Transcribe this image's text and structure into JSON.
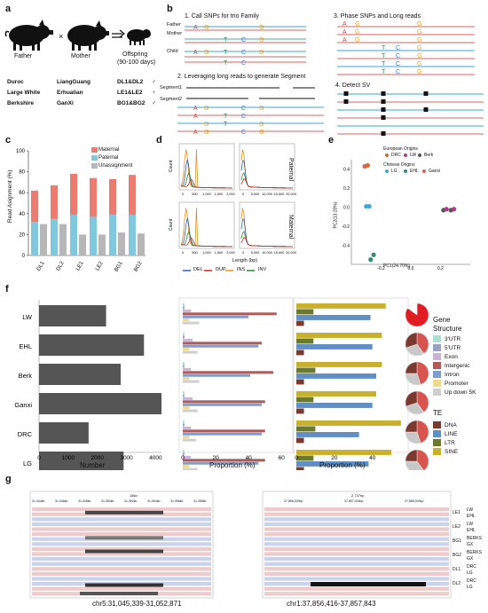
{
  "panel_a": {
    "label": "a",
    "father": "Father",
    "mother": "Mother",
    "offspring_line1": "Offspring",
    "offspring_line2": "(90-100 days)",
    "rows": [
      {
        "father": "Duroc",
        "mother": "LiangGuang",
        "offspring": "DL1&DL2",
        "sex": "♂"
      },
      {
        "father": "Large White",
        "mother": "Erhualian",
        "offspring": "LE1&LE2",
        "sex": "♀"
      },
      {
        "father": "Berkshire",
        "mother": "GanXi",
        "offspring": "BG1&BG2",
        "sex": "♂"
      }
    ]
  },
  "panel_b": {
    "label": "b",
    "step1": "1. Call SNPs for trio Family",
    "step2": "2. Leveraging long reads to generate Segment",
    "step3": "3. Phase SNPs and Long reads",
    "step4": "4. Detect SV",
    "father": "Father",
    "mother": "Mother",
    "child": "Child",
    "segment1": "Segment1",
    "segment2": "Segment2",
    "bases": [
      "A",
      "G",
      "T",
      "C",
      "G"
    ]
  },
  "panel_c": {
    "label": "c",
    "colors": {
      "Maternal": "#ee7b6f",
      "Paternal": "#7fc8dd",
      "Unassignment": "#b7b7b7"
    },
    "chart_data": {
      "type": "bar",
      "categories": [
        "DL1",
        "DL2",
        "LE1",
        "LE2",
        "BG1",
        "BG2"
      ],
      "series": [
        {
          "name": "Maternal",
          "values": [
            30,
            32,
            39,
            37,
            34,
            38
          ]
        },
        {
          "name": "Paternal",
          "values": [
            32,
            35,
            39,
            37,
            39,
            39
          ]
        },
        {
          "name": "Unassignment",
          "values": [
            30,
            30,
            20,
            20,
            22,
            21
          ]
        }
      ],
      "ylabel": "Read Asignment (%)",
      "ylim": [
        0,
        100
      ],
      "yticks": [
        0,
        20,
        40,
        60,
        80,
        100
      ],
      "legend": "top-right"
    }
  },
  "panel_d": {
    "label": "d",
    "paternal": "Paternal",
    "maternal": "Maternal",
    "ylabel": "Count",
    "xlabel": "Length (bp)",
    "left_ticks": [
      "0",
      "500",
      "1,000",
      "1,500",
      "2,000"
    ],
    "right_ticks": [
      "0",
      "5,000",
      "10,000",
      "15,000",
      "20,000"
    ],
    "legend": [
      {
        "name": "DEL",
        "color": "#2c5fa6"
      },
      {
        "name": "DUP",
        "color": "#d7261e"
      },
      {
        "name": "INS",
        "color": "#f08c1c"
      },
      {
        "name": "INV",
        "color": "#2e8b3a"
      }
    ]
  },
  "panel_e": {
    "label": "e",
    "european_title": "European Origins",
    "chinese_title": "Chinese Origins",
    "legend": [
      {
        "name": "DRC",
        "color": "#d46b2a"
      },
      {
        "name": "LW",
        "color": "#b5358a"
      },
      {
        "name": "Berk",
        "color": "#555555"
      },
      {
        "name": "LG",
        "color": "#3aa7d6"
      },
      {
        "name": "EHL",
        "color": "#2f8f7a"
      },
      {
        "name": "Ganxi",
        "color": "#e0605a"
      }
    ],
    "chart_data": {
      "type": "scatter",
      "xlabel": "PC1(24.70%)",
      "ylabel": "PC2(13.20%)",
      "xticks": [
        -0.2,
        0.0,
        0.2
      ],
      "yticks": [
        -0.4,
        -0.2,
        0.0,
        0.2,
        0.4
      ],
      "points": [
        {
          "group": "Ganxi",
          "x": -0.31,
          "y": 0.43
        },
        {
          "group": "DRC",
          "x": -0.29,
          "y": 0.44
        },
        {
          "group": "LG",
          "x": -0.3,
          "y": 0.01
        },
        {
          "group": "LG",
          "x": -0.28,
          "y": 0.01
        },
        {
          "group": "EHL",
          "x": -0.27,
          "y": -0.55
        },
        {
          "group": "EHL",
          "x": -0.25,
          "y": -0.5
        },
        {
          "group": "Berk",
          "x": 0.22,
          "y": -0.03
        },
        {
          "group": "LW",
          "x": 0.24,
          "y": -0.02
        },
        {
          "group": "Berk",
          "x": 0.27,
          "y": -0.03
        },
        {
          "group": "LW",
          "x": 0.29,
          "y": -0.02
        }
      ]
    },
    "axis_titles": {
      "x": "PC1(24.70%)",
      "y": "PC2(13.20%)"
    }
  },
  "panel_f": {
    "label": "f",
    "breeds": [
      "LW",
      "EHL",
      "Berk",
      "Ganxi",
      "DRC",
      "LG"
    ],
    "number_chart": {
      "type": "bar",
      "categories": [
        "LW",
        "EHL",
        "Berk",
        "Ganxi",
        "DRC",
        "LG"
      ],
      "values": [
        2300,
        3600,
        2800,
        4200,
        1700,
        2900
      ],
      "xlim": [
        0,
        4200
      ],
      "xticks": [
        0,
        1000,
        2000,
        3000,
        4000
      ],
      "xlabel": "Number"
    },
    "gene_chart": {
      "type": "bar",
      "categories": [
        "LW",
        "EHL",
        "Berk",
        "Ganxi",
        "DRC",
        "LG"
      ],
      "xticks": [
        0,
        20,
        40,
        60
      ],
      "xlim": [
        0,
        62
      ],
      "xlabel": "Proportion (%)",
      "series": [
        {
          "name": "3'UTR",
          "color": "#a9ded3",
          "values": [
            1,
            1,
            1,
            1,
            1,
            1
          ]
        },
        {
          "name": "5'UTR",
          "color": "#9aa0c4",
          "values": [
            1,
            1,
            1,
            1,
            1,
            1
          ]
        },
        {
          "name": "Exon",
          "color": "#c9b4d8",
          "values": [
            5,
            6,
            5,
            6,
            5,
            5
          ]
        },
        {
          "name": "Intergenic",
          "color": "#b15b58",
          "values": [
            57,
            48,
            55,
            50,
            50,
            50
          ]
        },
        {
          "name": "Intron",
          "color": "#7f9ed0",
          "values": [
            40,
            46,
            41,
            48,
            48,
            46
          ]
        },
        {
          "name": "Promoter",
          "color": "#f0d98e",
          "values": [
            4,
            4,
            4,
            4,
            4,
            4
          ]
        },
        {
          "name": "Up down 5K",
          "color": "#cfcfcf",
          "values": [
            10,
            9,
            10,
            9,
            8,
            9
          ]
        }
      ]
    },
    "te_chart": {
      "type": "bar",
      "categories": [
        "LW",
        "EHL",
        "Berk",
        "Ganxi",
        "DRC",
        "LG"
      ],
      "xticks": [
        0,
        20,
        40
      ],
      "xlim": [
        0,
        56
      ],
      "xlabel": "Proportion (%)",
      "series": [
        {
          "name": "DNA",
          "color": "#7a3b2e",
          "values": [
            4,
            4,
            4,
            4,
            4,
            4
          ]
        },
        {
          "name": "LINE",
          "color": "#5f8fc6",
          "values": [
            39,
            40,
            42,
            40,
            33,
            38
          ]
        },
        {
          "name": "LTR",
          "color": "#6b7a2a",
          "values": [
            9,
            9,
            10,
            9,
            10,
            9
          ]
        },
        {
          "name": "SINE",
          "color": "#c8b02a",
          "values": [
            47,
            45,
            45,
            42,
            55,
            50
          ]
        }
      ]
    },
    "pies": [
      [
        {
          "v": 85,
          "c": "#e21c23"
        },
        {
          "v": 15,
          "c": "#ffffff"
        }
      ],
      [
        {
          "v": 40,
          "c": "#d9534f"
        },
        {
          "v": 30,
          "c": "#c8c8c8"
        },
        {
          "v": 30,
          "c": "#7b3a2f"
        }
      ],
      [
        {
          "v": 45,
          "c": "#d9534f"
        },
        {
          "v": 30,
          "c": "#c8c8c8"
        },
        {
          "v": 25,
          "c": "#7b3a2f"
        }
      ],
      [
        {
          "v": 40,
          "c": "#d9534f"
        },
        {
          "v": 30,
          "c": "#c8c8c8"
        },
        {
          "v": 30,
          "c": "#7b3a2f"
        }
      ],
      [
        {
          "v": 45,
          "c": "#d9534f"
        },
        {
          "v": 30,
          "c": "#c8c8c8"
        },
        {
          "v": 25,
          "c": "#7b3a2f"
        }
      ],
      [
        {
          "v": 40,
          "c": "#d9534f"
        },
        {
          "v": 35,
          "c": "#c8c8c8"
        },
        {
          "v": 25,
          "c": "#7b3a2f"
        }
      ]
    ],
    "gene_structure_title": "Gene\nStructure",
    "gene_structure_line1": "Gene",
    "gene_structure_line2": "Structure",
    "te_title": "TE"
  },
  "panel_g": {
    "label": "g",
    "left_caption": "chr5:31,045,339-31,052,871",
    "right_caption": "chr1:37,856,416-37,857,843",
    "left_ruler": [
      "31,044kb",
      "31,046kb",
      "31,048kb",
      "31,050kb",
      "31,052kb",
      "31,054kb",
      "31,056kb",
      "31,058kb"
    ],
    "left_scale": "18kb",
    "right_scale": "2,737bp",
    "right_ruler": [
      "37,856,000bp",
      "37,857,000bp",
      "37,858,000bp"
    ],
    "right_labels": [
      {
        "sample": "LE1",
        "breeds": [
          "LW",
          "EHL"
        ]
      },
      {
        "sample": "LE2",
        "breeds": [
          "LW",
          "EHL"
        ]
      },
      {
        "sample": "BG1",
        "breeds": [
          "BERKS",
          "GX"
        ]
      },
      {
        "sample": "BG2",
        "breeds": [
          "BERKS",
          "GX"
        ]
      },
      {
        "sample": "DL1",
        "breeds": [
          "DRC",
          "LG"
        ]
      },
      {
        "sample": "DL2",
        "breeds": [
          "DRC",
          "LG"
        ]
      }
    ]
  }
}
